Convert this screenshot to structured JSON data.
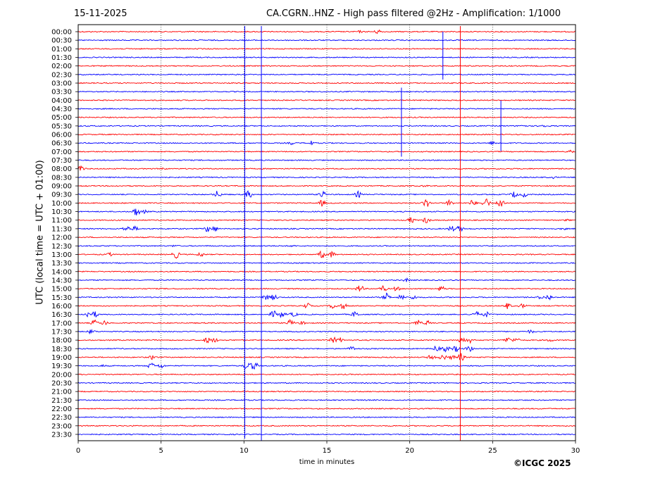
{
  "header": {
    "date": "15-11-2025",
    "title": "CA.CGRN..HNZ - High pass filtered @2Hz - Amplification: 1/1000"
  },
  "footer": {
    "copyright": "©ICGC 2025"
  },
  "chart_data": {
    "type": "line",
    "subtype": "helicorder",
    "xlabel": "time in minutes",
    "ylabel": "UTC (local time = UTC + 01:00)",
    "xlim": [
      0,
      30
    ],
    "xticks": [
      0,
      5,
      10,
      15,
      20,
      25,
      30
    ],
    "x_gridlines": [
      5,
      10,
      15,
      20,
      25
    ],
    "grid": "vertical dotted",
    "row_labels": [
      "00:00",
      "00:30",
      "01:00",
      "01:30",
      "02:00",
      "02:30",
      "03:00",
      "03:30",
      "04:00",
      "04:30",
      "05:00",
      "05:30",
      "06:00",
      "06:30",
      "07:00",
      "07:30",
      "08:00",
      "08:30",
      "09:00",
      "09:30",
      "10:00",
      "10:30",
      "11:00",
      "11:30",
      "12:00",
      "12:30",
      "13:00",
      "13:30",
      "14:00",
      "14:30",
      "15:00",
      "15:30",
      "16:00",
      "16:30",
      "17:00",
      "17:30",
      "18:00",
      "18:30",
      "19:00",
      "19:30",
      "20:00",
      "20:30",
      "21:00",
      "21:30",
      "22:00",
      "22:30",
      "23:00",
      "23:30"
    ],
    "trace_colors": [
      "#ff0000",
      "#0000ff"
    ],
    "events": [
      {
        "row": 0,
        "t": 18.1,
        "amp": 4
      },
      {
        "row": 0,
        "t": 17.0,
        "amp": 2
      },
      {
        "row": 5,
        "t": 0.3,
        "amp": 1
      },
      {
        "row": 6,
        "t": 10.0,
        "amp": 1
      },
      {
        "row": 10,
        "t": 0.4,
        "amp": 1
      },
      {
        "row": 11,
        "t": 26.8,
        "amp": 3
      },
      {
        "row": 11,
        "t": 28.0,
        "amp": 3
      },
      {
        "row": 13,
        "t": 12.9,
        "amp": 3
      },
      {
        "row": 13,
        "t": 14.0,
        "amp": 4
      },
      {
        "row": 13,
        "t": 25.0,
        "amp": 3
      },
      {
        "row": 14,
        "t": 29.7,
        "amp": 3
      },
      {
        "row": 16,
        "t": 0.2,
        "amp": 5
      },
      {
        "row": 16,
        "t": 5.1,
        "amp": 2
      },
      {
        "row": 17,
        "t": 28.7,
        "amp": 2
      },
      {
        "row": 18,
        "t": 20.9,
        "amp": 2
      },
      {
        "row": 19,
        "t": 8.4,
        "amp": 6
      },
      {
        "row": 19,
        "t": 10.3,
        "amp": 6
      },
      {
        "row": 19,
        "t": 14.7,
        "amp": 6
      },
      {
        "row": 19,
        "t": 16.9,
        "amp": 5
      },
      {
        "row": 19,
        "t": 26.3,
        "amp": 5
      },
      {
        "row": 19,
        "t": 26.9,
        "amp": 4
      },
      {
        "row": 20,
        "t": 14.7,
        "amp": 5
      },
      {
        "row": 20,
        "t": 21.0,
        "amp": 7
      },
      {
        "row": 20,
        "t": 22.4,
        "amp": 5
      },
      {
        "row": 20,
        "t": 23.8,
        "amp": 5
      },
      {
        "row": 20,
        "t": 24.6,
        "amp": 8
      },
      {
        "row": 20,
        "t": 25.5,
        "amp": 9
      },
      {
        "row": 21,
        "t": 3.5,
        "amp": 7
      },
      {
        "row": 21,
        "t": 4.0,
        "amp": 3
      },
      {
        "row": 22,
        "t": 20.1,
        "amp": 5
      },
      {
        "row": 22,
        "t": 21.0,
        "amp": 5
      },
      {
        "row": 22,
        "t": 29.5,
        "amp": 2
      },
      {
        "row": 23,
        "t": 2.9,
        "amp": 5
      },
      {
        "row": 23,
        "t": 3.4,
        "amp": 4
      },
      {
        "row": 23,
        "t": 7.8,
        "amp": 5
      },
      {
        "row": 23,
        "t": 8.2,
        "amp": 5
      },
      {
        "row": 23,
        "t": 22.5,
        "amp": 5
      },
      {
        "row": 23,
        "t": 23.0,
        "amp": 5
      },
      {
        "row": 23,
        "t": 29.3,
        "amp": 2
      },
      {
        "row": 25,
        "t": 5.8,
        "amp": 2
      },
      {
        "row": 25,
        "t": 12.9,
        "amp": 2
      },
      {
        "row": 26,
        "t": 1.9,
        "amp": 3
      },
      {
        "row": 26,
        "t": 5.9,
        "amp": 6
      },
      {
        "row": 26,
        "t": 7.4,
        "amp": 4
      },
      {
        "row": 26,
        "t": 14.7,
        "amp": 6
      },
      {
        "row": 26,
        "t": 15.3,
        "amp": 5
      },
      {
        "row": 29,
        "t": 19.8,
        "amp": 3
      },
      {
        "row": 30,
        "t": 17.0,
        "amp": 6
      },
      {
        "row": 30,
        "t": 18.4,
        "amp": 5
      },
      {
        "row": 30,
        "t": 19.2,
        "amp": 4
      },
      {
        "row": 30,
        "t": 21.9,
        "amp": 5
      },
      {
        "row": 31,
        "t": 11.3,
        "amp": 5
      },
      {
        "row": 31,
        "t": 11.8,
        "amp": 5
      },
      {
        "row": 31,
        "t": 18.6,
        "amp": 6
      },
      {
        "row": 31,
        "t": 19.5,
        "amp": 5
      },
      {
        "row": 31,
        "t": 20.2,
        "amp": 4
      },
      {
        "row": 31,
        "t": 28.4,
        "amp": 5
      },
      {
        "row": 31,
        "t": 27.9,
        "amp": 3
      },
      {
        "row": 32,
        "t": 13.8,
        "amp": 5
      },
      {
        "row": 32,
        "t": 15.4,
        "amp": 5
      },
      {
        "row": 32,
        "t": 16.0,
        "amp": 5
      },
      {
        "row": 32,
        "t": 25.9,
        "amp": 5
      },
      {
        "row": 32,
        "t": 26.8,
        "amp": 4
      },
      {
        "row": 33,
        "t": 0.6,
        "amp": 5
      },
      {
        "row": 33,
        "t": 1.0,
        "amp": 5
      },
      {
        "row": 33,
        "t": 11.8,
        "amp": 6
      },
      {
        "row": 33,
        "t": 12.3,
        "amp": 5
      },
      {
        "row": 33,
        "t": 13.0,
        "amp": 4
      },
      {
        "row": 33,
        "t": 16.7,
        "amp": 5
      },
      {
        "row": 33,
        "t": 24.0,
        "amp": 5
      },
      {
        "row": 33,
        "t": 24.6,
        "amp": 5
      },
      {
        "row": 34,
        "t": 1.0,
        "amp": 5
      },
      {
        "row": 34,
        "t": 1.6,
        "amp": 4
      },
      {
        "row": 34,
        "t": 12.8,
        "amp": 5
      },
      {
        "row": 34,
        "t": 13.5,
        "amp": 3
      },
      {
        "row": 34,
        "t": 20.5,
        "amp": 5
      },
      {
        "row": 34,
        "t": 21.1,
        "amp": 4
      },
      {
        "row": 35,
        "t": 0.8,
        "amp": 4
      },
      {
        "row": 35,
        "t": 27.3,
        "amp": 3
      },
      {
        "row": 36,
        "t": 7.8,
        "amp": 5
      },
      {
        "row": 36,
        "t": 8.2,
        "amp": 4
      },
      {
        "row": 36,
        "t": 15.4,
        "amp": 5
      },
      {
        "row": 36,
        "t": 15.8,
        "amp": 4
      },
      {
        "row": 36,
        "t": 23.1,
        "amp": 6
      },
      {
        "row": 36,
        "t": 23.6,
        "amp": 5
      },
      {
        "row": 36,
        "t": 25.9,
        "amp": 5
      },
      {
        "row": 36,
        "t": 26.4,
        "amp": 4
      },
      {
        "row": 36,
        "t": 28.5,
        "amp": 3
      },
      {
        "row": 37,
        "t": 16.5,
        "amp": 4
      },
      {
        "row": 37,
        "t": 21.6,
        "amp": 5
      },
      {
        "row": 37,
        "t": 22.2,
        "amp": 5
      },
      {
        "row": 37,
        "t": 22.8,
        "amp": 5
      },
      {
        "row": 37,
        "t": 23.6,
        "amp": 5
      },
      {
        "row": 38,
        "t": 4.5,
        "amp": 4
      },
      {
        "row": 38,
        "t": 21.3,
        "amp": 5
      },
      {
        "row": 38,
        "t": 22.0,
        "amp": 5
      },
      {
        "row": 38,
        "t": 22.6,
        "amp": 4
      },
      {
        "row": 38,
        "t": 23.1,
        "amp": 6
      },
      {
        "row": 39,
        "t": 1.5,
        "amp": 2
      },
      {
        "row": 39,
        "t": 4.4,
        "amp": 5
      },
      {
        "row": 39,
        "t": 5.0,
        "amp": 4
      },
      {
        "row": 39,
        "t": 10.2,
        "amp": 7
      },
      {
        "row": 39,
        "t": 10.6,
        "amp": 8
      }
    ],
    "spikes": [
      {
        "row": 0,
        "t": 22.0,
        "up": 0,
        "down": 68,
        "color": "#0000ff"
      },
      {
        "row": 9,
        "t": 19.5,
        "up": 30,
        "down": 68,
        "color": "#0000ff"
      },
      {
        "row": 10,
        "t": 25.5,
        "up": 24,
        "down": 48,
        "color": "#0000ff"
      },
      {
        "row": 0,
        "t": 10.05,
        "up": 8,
        "down": 578,
        "color": "#0000ff"
      },
      {
        "row": 0,
        "t": 11.05,
        "up": 8,
        "down": 585,
        "color": "#0000ff"
      },
      {
        "row": 0,
        "t": 23.05,
        "up": 8,
        "down": 585,
        "color": "#ff0000"
      }
    ]
  }
}
